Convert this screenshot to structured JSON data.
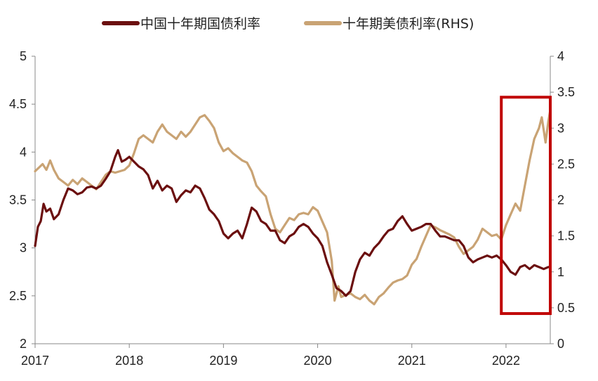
{
  "chart_data": {
    "type": "line",
    "x_axis": {
      "ticks": [
        "2017",
        "2018",
        "2019",
        "2020",
        "2021",
        "2022"
      ],
      "range": [
        2017.0,
        2022.47
      ]
    },
    "y_left": {
      "ticks": [
        "2",
        "2.5",
        "3",
        "3.5",
        "4",
        "4.5",
        "5"
      ],
      "range": [
        2,
        5
      ]
    },
    "y_right": {
      "ticks": [
        "0",
        "0.5",
        "1",
        "1.5",
        "2",
        "2.5",
        "3",
        "3.5",
        "4"
      ],
      "range": [
        0,
        4
      ]
    },
    "grid": false,
    "legend_position": "top-center",
    "series": [
      {
        "name": "中国十年期国债利率",
        "axis": "left",
        "color": "#6b0f0f",
        "points": [
          [
            2017.0,
            3.02
          ],
          [
            2017.03,
            3.22
          ],
          [
            2017.06,
            3.28
          ],
          [
            2017.09,
            3.46
          ],
          [
            2017.12,
            3.38
          ],
          [
            2017.16,
            3.41
          ],
          [
            2017.2,
            3.3
          ],
          [
            2017.25,
            3.35
          ],
          [
            2017.3,
            3.5
          ],
          [
            2017.35,
            3.62
          ],
          [
            2017.4,
            3.6
          ],
          [
            2017.45,
            3.56
          ],
          [
            2017.5,
            3.58
          ],
          [
            2017.55,
            3.63
          ],
          [
            2017.6,
            3.64
          ],
          [
            2017.65,
            3.62
          ],
          [
            2017.7,
            3.65
          ],
          [
            2017.75,
            3.72
          ],
          [
            2017.8,
            3.8
          ],
          [
            2017.85,
            3.95
          ],
          [
            2017.88,
            4.02
          ],
          [
            2017.92,
            3.9
          ],
          [
            2017.96,
            3.92
          ],
          [
            2018.0,
            3.95
          ],
          [
            2018.05,
            3.9
          ],
          [
            2018.1,
            3.85
          ],
          [
            2018.15,
            3.82
          ],
          [
            2018.2,
            3.76
          ],
          [
            2018.25,
            3.62
          ],
          [
            2018.3,
            3.7
          ],
          [
            2018.35,
            3.6
          ],
          [
            2018.4,
            3.65
          ],
          [
            2018.45,
            3.62
          ],
          [
            2018.5,
            3.48
          ],
          [
            2018.55,
            3.55
          ],
          [
            2018.6,
            3.6
          ],
          [
            2018.65,
            3.58
          ],
          [
            2018.7,
            3.65
          ],
          [
            2018.75,
            3.62
          ],
          [
            2018.8,
            3.52
          ],
          [
            2018.85,
            3.4
          ],
          [
            2018.9,
            3.35
          ],
          [
            2018.95,
            3.28
          ],
          [
            2019.0,
            3.15
          ],
          [
            2019.05,
            3.1
          ],
          [
            2019.1,
            3.15
          ],
          [
            2019.15,
            3.18
          ],
          [
            2019.2,
            3.1
          ],
          [
            2019.25,
            3.25
          ],
          [
            2019.3,
            3.42
          ],
          [
            2019.35,
            3.38
          ],
          [
            2019.4,
            3.28
          ],
          [
            2019.45,
            3.25
          ],
          [
            2019.5,
            3.18
          ],
          [
            2019.55,
            3.18
          ],
          [
            2019.6,
            3.08
          ],
          [
            2019.65,
            3.05
          ],
          [
            2019.7,
            3.12
          ],
          [
            2019.75,
            3.15
          ],
          [
            2019.8,
            3.22
          ],
          [
            2019.85,
            3.25
          ],
          [
            2019.9,
            3.22
          ],
          [
            2019.95,
            3.15
          ],
          [
            2020.0,
            3.1
          ],
          [
            2020.05,
            3.02
          ],
          [
            2020.1,
            2.85
          ],
          [
            2020.15,
            2.72
          ],
          [
            2020.2,
            2.58
          ],
          [
            2020.25,
            2.55
          ],
          [
            2020.3,
            2.5
          ],
          [
            2020.35,
            2.55
          ],
          [
            2020.4,
            2.75
          ],
          [
            2020.45,
            2.88
          ],
          [
            2020.5,
            2.95
          ],
          [
            2020.55,
            2.92
          ],
          [
            2020.6,
            3.0
          ],
          [
            2020.65,
            3.05
          ],
          [
            2020.7,
            3.12
          ],
          [
            2020.75,
            3.18
          ],
          [
            2020.8,
            3.2
          ],
          [
            2020.85,
            3.28
          ],
          [
            2020.9,
            3.33
          ],
          [
            2020.95,
            3.25
          ],
          [
            2021.0,
            3.18
          ],
          [
            2021.05,
            3.2
          ],
          [
            2021.1,
            3.22
          ],
          [
            2021.15,
            3.25
          ],
          [
            2021.2,
            3.25
          ],
          [
            2021.25,
            3.18
          ],
          [
            2021.3,
            3.12
          ],
          [
            2021.35,
            3.12
          ],
          [
            2021.4,
            3.1
          ],
          [
            2021.45,
            3.08
          ],
          [
            2021.5,
            3.08
          ],
          [
            2021.55,
            3.02
          ],
          [
            2021.6,
            2.9
          ],
          [
            2021.65,
            2.85
          ],
          [
            2021.7,
            2.88
          ],
          [
            2021.75,
            2.9
          ],
          [
            2021.8,
            2.92
          ],
          [
            2021.85,
            2.9
          ],
          [
            2021.9,
            2.92
          ],
          [
            2021.95,
            2.88
          ],
          [
            2022.0,
            2.82
          ],
          [
            2022.05,
            2.75
          ],
          [
            2022.1,
            2.72
          ],
          [
            2022.15,
            2.8
          ],
          [
            2022.2,
            2.82
          ],
          [
            2022.25,
            2.78
          ],
          [
            2022.3,
            2.82
          ],
          [
            2022.35,
            2.8
          ],
          [
            2022.4,
            2.78
          ],
          [
            2022.45,
            2.8
          ]
        ]
      },
      {
        "name": "十年期美债利率(RHS)",
        "axis": "right",
        "color": "#c9a374",
        "points": [
          [
            2017.0,
            2.4
          ],
          [
            2017.04,
            2.45
          ],
          [
            2017.08,
            2.5
          ],
          [
            2017.12,
            2.42
          ],
          [
            2017.16,
            2.55
          ],
          [
            2017.2,
            2.42
          ],
          [
            2017.25,
            2.3
          ],
          [
            2017.3,
            2.25
          ],
          [
            2017.35,
            2.2
          ],
          [
            2017.4,
            2.28
          ],
          [
            2017.45,
            2.22
          ],
          [
            2017.5,
            2.3
          ],
          [
            2017.55,
            2.25
          ],
          [
            2017.6,
            2.2
          ],
          [
            2017.65,
            2.15
          ],
          [
            2017.7,
            2.25
          ],
          [
            2017.75,
            2.35
          ],
          [
            2017.8,
            2.4
          ],
          [
            2017.85,
            2.38
          ],
          [
            2017.9,
            2.4
          ],
          [
            2017.95,
            2.42
          ],
          [
            2018.0,
            2.48
          ],
          [
            2018.05,
            2.65
          ],
          [
            2018.1,
            2.85
          ],
          [
            2018.15,
            2.9
          ],
          [
            2018.2,
            2.85
          ],
          [
            2018.25,
            2.8
          ],
          [
            2018.3,
            2.95
          ],
          [
            2018.35,
            3.05
          ],
          [
            2018.4,
            2.95
          ],
          [
            2018.45,
            2.9
          ],
          [
            2018.5,
            2.85
          ],
          [
            2018.55,
            2.95
          ],
          [
            2018.6,
            2.88
          ],
          [
            2018.65,
            2.95
          ],
          [
            2018.7,
            3.05
          ],
          [
            2018.75,
            3.15
          ],
          [
            2018.8,
            3.18
          ],
          [
            2018.85,
            3.1
          ],
          [
            2018.9,
            3.0
          ],
          [
            2018.95,
            2.8
          ],
          [
            2019.0,
            2.68
          ],
          [
            2019.05,
            2.72
          ],
          [
            2019.1,
            2.65
          ],
          [
            2019.15,
            2.6
          ],
          [
            2019.2,
            2.55
          ],
          [
            2019.25,
            2.52
          ],
          [
            2019.3,
            2.4
          ],
          [
            2019.35,
            2.2
          ],
          [
            2019.4,
            2.12
          ],
          [
            2019.45,
            2.05
          ],
          [
            2019.5,
            1.8
          ],
          [
            2019.55,
            1.6
          ],
          [
            2019.6,
            1.55
          ],
          [
            2019.65,
            1.65
          ],
          [
            2019.7,
            1.75
          ],
          [
            2019.75,
            1.72
          ],
          [
            2019.8,
            1.8
          ],
          [
            2019.85,
            1.82
          ],
          [
            2019.9,
            1.8
          ],
          [
            2019.95,
            1.9
          ],
          [
            2020.0,
            1.85
          ],
          [
            2020.05,
            1.7
          ],
          [
            2020.1,
            1.55
          ],
          [
            2020.15,
            1.15
          ],
          [
            2020.18,
            0.6
          ],
          [
            2020.22,
            0.8
          ],
          [
            2020.25,
            0.65
          ],
          [
            2020.3,
            0.68
          ],
          [
            2020.35,
            0.7
          ],
          [
            2020.4,
            0.65
          ],
          [
            2020.45,
            0.62
          ],
          [
            2020.5,
            0.68
          ],
          [
            2020.55,
            0.6
          ],
          [
            2020.6,
            0.55
          ],
          [
            2020.65,
            0.65
          ],
          [
            2020.7,
            0.7
          ],
          [
            2020.75,
            0.78
          ],
          [
            2020.8,
            0.85
          ],
          [
            2020.85,
            0.88
          ],
          [
            2020.9,
            0.9
          ],
          [
            2020.95,
            0.95
          ],
          [
            2021.0,
            1.1
          ],
          [
            2021.05,
            1.18
          ],
          [
            2021.1,
            1.35
          ],
          [
            2021.15,
            1.5
          ],
          [
            2021.2,
            1.65
          ],
          [
            2021.25,
            1.62
          ],
          [
            2021.3,
            1.58
          ],
          [
            2021.35,
            1.55
          ],
          [
            2021.4,
            1.52
          ],
          [
            2021.45,
            1.48
          ],
          [
            2021.5,
            1.35
          ],
          [
            2021.55,
            1.25
          ],
          [
            2021.6,
            1.3
          ],
          [
            2021.65,
            1.35
          ],
          [
            2021.7,
            1.45
          ],
          [
            2021.75,
            1.6
          ],
          [
            2021.8,
            1.55
          ],
          [
            2021.85,
            1.5
          ],
          [
            2021.9,
            1.52
          ],
          [
            2021.95,
            1.45
          ],
          [
            2022.0,
            1.65
          ],
          [
            2022.05,
            1.8
          ],
          [
            2022.1,
            1.95
          ],
          [
            2022.15,
            1.85
          ],
          [
            2022.2,
            2.2
          ],
          [
            2022.25,
            2.55
          ],
          [
            2022.3,
            2.85
          ],
          [
            2022.35,
            3.0
          ],
          [
            2022.38,
            3.15
          ],
          [
            2022.42,
            2.8
          ],
          [
            2022.45,
            3.1
          ],
          [
            2022.47,
            3.25
          ]
        ]
      }
    ],
    "annotation": {
      "type": "box",
      "color": "#c00000",
      "x_range": [
        2021.95,
        2022.47
      ],
      "y_right_range": [
        0.42,
        3.43
      ]
    }
  }
}
